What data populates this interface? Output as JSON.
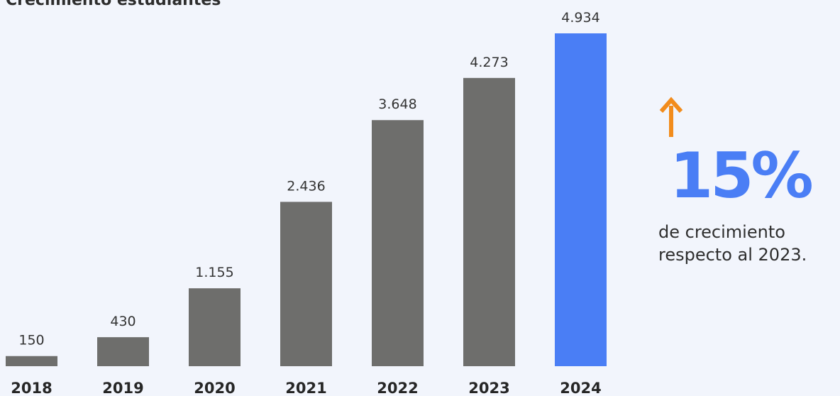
{
  "chart_data": {
    "type": "bar",
    "title": "Crecimiento estudiantes",
    "categories": [
      "2018",
      "2019",
      "2020",
      "2021",
      "2022",
      "2023",
      "2024"
    ],
    "values": [
      150,
      430,
      1155,
      2436,
      3648,
      4273,
      4934
    ],
    "value_labels": [
      "150",
      "430",
      "1.155",
      "2.436",
      "3.648",
      "4.273",
      "4.934"
    ],
    "ylim": [
      0,
      4934
    ],
    "grid": false,
    "bar_color": "#6e6e6c",
    "highlight_color": "#4a7ef5",
    "highlight_category": "2024"
  },
  "callout": {
    "percent": "15%",
    "line1": "de crecimiento",
    "line2": "respecto al 2023.",
    "arrow_color": "#f28c1c",
    "arrow_icon": "arrow-up-icon"
  }
}
